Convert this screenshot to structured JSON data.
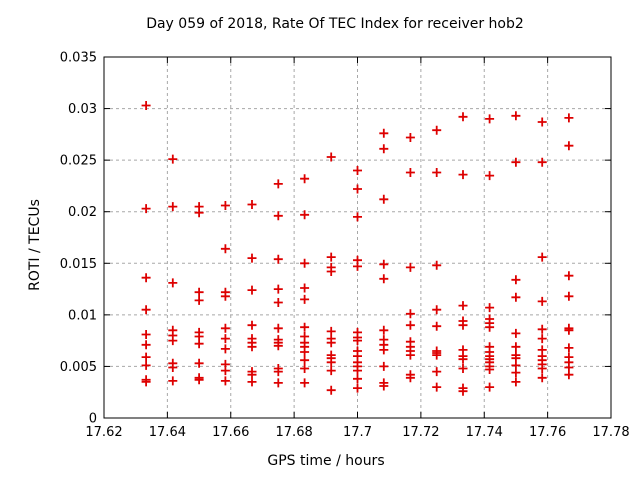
{
  "chart_data": {
    "type": "scatter",
    "title": "Day 059 of 2018, Rate Of TEC Index for receiver hob2",
    "xlabel": "GPS time / hours",
    "ylabel": "ROTI / TECUs",
    "xlim": [
      17.62,
      17.78
    ],
    "ylim": [
      0,
      0.035
    ],
    "xticks": [
      {
        "value": 17.62,
        "label": "17.62"
      },
      {
        "value": 17.64,
        "label": "17.64"
      },
      {
        "value": 17.66,
        "label": "17.66"
      },
      {
        "value": 17.68,
        "label": "17.68"
      },
      {
        "value": 17.7,
        "label": "17.7"
      },
      {
        "value": 17.72,
        "label": "17.72"
      },
      {
        "value": 17.74,
        "label": "17.74"
      },
      {
        "value": 17.76,
        "label": "17.76"
      },
      {
        "value": 17.78,
        "label": "17.78"
      }
    ],
    "yticks": [
      {
        "value": 0,
        "label": "0"
      },
      {
        "value": 0.005,
        "label": "0.005"
      },
      {
        "value": 0.01,
        "label": "0.01"
      },
      {
        "value": 0.015,
        "label": "0.015"
      },
      {
        "value": 0.02,
        "label": "0.02"
      },
      {
        "value": 0.025,
        "label": "0.025"
      },
      {
        "value": 0.03,
        "label": "0.03"
      },
      {
        "value": 0.035,
        "label": "0.035"
      }
    ],
    "grid": true,
    "legend": "none",
    "marker": "plus",
    "colors": {
      "marker": "#dd0000",
      "grid": "#a8a8a8",
      "axis": "#000000",
      "background": "#ffffff"
    },
    "series": [
      {
        "name": "ROTI",
        "points": [
          [
            17.6333,
            0.0303
          ],
          [
            17.6333,
            0.0203
          ],
          [
            17.6333,
            0.0136
          ],
          [
            17.6333,
            0.0105
          ],
          [
            17.6333,
            0.0081
          ],
          [
            17.6333,
            0.0071
          ],
          [
            17.6333,
            0.0059
          ],
          [
            17.6333,
            0.0051
          ],
          [
            17.6333,
            0.0037
          ],
          [
            17.6333,
            0.0035
          ],
          [
            17.6417,
            0.0251
          ],
          [
            17.6417,
            0.0205
          ],
          [
            17.6417,
            0.0131
          ],
          [
            17.6417,
            0.0085
          ],
          [
            17.6417,
            0.008
          ],
          [
            17.6417,
            0.0075
          ],
          [
            17.6417,
            0.0053
          ],
          [
            17.6417,
            0.0049
          ],
          [
            17.6417,
            0.0036
          ],
          [
            17.65,
            0.0205
          ],
          [
            17.65,
            0.0199
          ],
          [
            17.65,
            0.0122
          ],
          [
            17.65,
            0.0114
          ],
          [
            17.65,
            0.0083
          ],
          [
            17.65,
            0.0079
          ],
          [
            17.65,
            0.0072
          ],
          [
            17.65,
            0.0053
          ],
          [
            17.65,
            0.0039
          ],
          [
            17.65,
            0.0037
          ],
          [
            17.6583,
            0.0206
          ],
          [
            17.6583,
            0.0164
          ],
          [
            17.6583,
            0.0122
          ],
          [
            17.6583,
            0.0118
          ],
          [
            17.6583,
            0.0087
          ],
          [
            17.6583,
            0.0077
          ],
          [
            17.6583,
            0.0067
          ],
          [
            17.6583,
            0.0052
          ],
          [
            17.6583,
            0.0046
          ],
          [
            17.6583,
            0.0036
          ],
          [
            17.6667,
            0.0207
          ],
          [
            17.6667,
            0.0155
          ],
          [
            17.6667,
            0.0124
          ],
          [
            17.6667,
            0.009
          ],
          [
            17.6667,
            0.0077
          ],
          [
            17.6667,
            0.0073
          ],
          [
            17.6667,
            0.0069
          ],
          [
            17.6667,
            0.0045
          ],
          [
            17.6667,
            0.0042
          ],
          [
            17.6667,
            0.0035
          ],
          [
            17.675,
            0.0227
          ],
          [
            17.675,
            0.0196
          ],
          [
            17.675,
            0.0154
          ],
          [
            17.675,
            0.0125
          ],
          [
            17.675,
            0.0112
          ],
          [
            17.675,
            0.0087
          ],
          [
            17.675,
            0.0076
          ],
          [
            17.675,
            0.0073
          ],
          [
            17.675,
            0.007
          ],
          [
            17.675,
            0.0048
          ],
          [
            17.675,
            0.0045
          ],
          [
            17.675,
            0.0034
          ],
          [
            17.6833,
            0.0232
          ],
          [
            17.6833,
            0.0197
          ],
          [
            17.6833,
            0.015
          ],
          [
            17.6833,
            0.0126
          ],
          [
            17.6833,
            0.0115
          ],
          [
            17.6833,
            0.0088
          ],
          [
            17.6833,
            0.0079
          ],
          [
            17.6833,
            0.0073
          ],
          [
            17.6833,
            0.0069
          ],
          [
            17.6833,
            0.0064
          ],
          [
            17.6833,
            0.0056
          ],
          [
            17.6833,
            0.0048
          ],
          [
            17.6833,
            0.0034
          ],
          [
            17.6917,
            0.0253
          ],
          [
            17.6917,
            0.0156
          ],
          [
            17.6917,
            0.0146
          ],
          [
            17.6917,
            0.0142
          ],
          [
            17.6917,
            0.0084
          ],
          [
            17.6917,
            0.0077
          ],
          [
            17.6917,
            0.0073
          ],
          [
            17.6917,
            0.0061
          ],
          [
            17.6917,
            0.0058
          ],
          [
            17.6917,
            0.0054
          ],
          [
            17.6917,
            0.0046
          ],
          [
            17.6917,
            0.0027
          ],
          [
            17.7,
            0.024
          ],
          [
            17.7,
            0.0222
          ],
          [
            17.7,
            0.0195
          ],
          [
            17.7,
            0.0153
          ],
          [
            17.7,
            0.0147
          ],
          [
            17.7,
            0.0083
          ],
          [
            17.7,
            0.0078
          ],
          [
            17.7,
            0.0075
          ],
          [
            17.7,
            0.0065
          ],
          [
            17.7,
            0.006
          ],
          [
            17.7,
            0.0054
          ],
          [
            17.7,
            0.005
          ],
          [
            17.7,
            0.0046
          ],
          [
            17.7,
            0.0038
          ],
          [
            17.7,
            0.0029
          ],
          [
            17.7083,
            0.0276
          ],
          [
            17.7083,
            0.0261
          ],
          [
            17.7083,
            0.0212
          ],
          [
            17.7083,
            0.0149
          ],
          [
            17.7083,
            0.0135
          ],
          [
            17.7083,
            0.0085
          ],
          [
            17.7083,
            0.0076
          ],
          [
            17.7083,
            0.0071
          ],
          [
            17.7083,
            0.0066
          ],
          [
            17.7083,
            0.005
          ],
          [
            17.7083,
            0.0034
          ],
          [
            17.7083,
            0.0031
          ],
          [
            17.7167,
            0.0272
          ],
          [
            17.7167,
            0.0238
          ],
          [
            17.7167,
            0.0146
          ],
          [
            17.7167,
            0.0101
          ],
          [
            17.7167,
            0.009
          ],
          [
            17.7167,
            0.0074
          ],
          [
            17.7167,
            0.0069
          ],
          [
            17.7167,
            0.0065
          ],
          [
            17.7167,
            0.0061
          ],
          [
            17.7167,
            0.0042
          ],
          [
            17.7167,
            0.0039
          ],
          [
            17.725,
            0.0279
          ],
          [
            17.725,
            0.0238
          ],
          [
            17.725,
            0.0148
          ],
          [
            17.725,
            0.0105
          ],
          [
            17.725,
            0.0089
          ],
          [
            17.725,
            0.0065
          ],
          [
            17.725,
            0.0063
          ],
          [
            17.725,
            0.0061
          ],
          [
            17.725,
            0.0045
          ],
          [
            17.725,
            0.003
          ],
          [
            17.7333,
            0.0292
          ],
          [
            17.7333,
            0.0236
          ],
          [
            17.7333,
            0.0109
          ],
          [
            17.7333,
            0.0094
          ],
          [
            17.7333,
            0.009
          ],
          [
            17.7333,
            0.0066
          ],
          [
            17.7333,
            0.006
          ],
          [
            17.7333,
            0.0057
          ],
          [
            17.7333,
            0.0048
          ],
          [
            17.7333,
            0.0029
          ],
          [
            17.7333,
            0.0026
          ],
          [
            17.7417,
            0.029
          ],
          [
            17.7417,
            0.0235
          ],
          [
            17.7417,
            0.0107
          ],
          [
            17.7417,
            0.0096
          ],
          [
            17.7417,
            0.0092
          ],
          [
            17.7417,
            0.0088
          ],
          [
            17.7417,
            0.0069
          ],
          [
            17.7417,
            0.0064
          ],
          [
            17.7417,
            0.006
          ],
          [
            17.7417,
            0.0057
          ],
          [
            17.7417,
            0.0054
          ],
          [
            17.7417,
            0.005
          ],
          [
            17.7417,
            0.0047
          ],
          [
            17.7417,
            0.003
          ],
          [
            17.75,
            0.0293
          ],
          [
            17.75,
            0.0248
          ],
          [
            17.75,
            0.0134
          ],
          [
            17.75,
            0.0117
          ],
          [
            17.75,
            0.0082
          ],
          [
            17.75,
            0.0069
          ],
          [
            17.75,
            0.0061
          ],
          [
            17.75,
            0.0058
          ],
          [
            17.75,
            0.0051
          ],
          [
            17.75,
            0.0044
          ],
          [
            17.75,
            0.0035
          ],
          [
            17.7583,
            0.0287
          ],
          [
            17.7583,
            0.0248
          ],
          [
            17.7583,
            0.0156
          ],
          [
            17.7583,
            0.0113
          ],
          [
            17.7583,
            0.0086
          ],
          [
            17.7583,
            0.0077
          ],
          [
            17.7583,
            0.0066
          ],
          [
            17.7583,
            0.006
          ],
          [
            17.7583,
            0.0056
          ],
          [
            17.7583,
            0.0052
          ],
          [
            17.7583,
            0.0048
          ],
          [
            17.7583,
            0.0039
          ],
          [
            17.7667,
            0.0291
          ],
          [
            17.7667,
            0.0264
          ],
          [
            17.7667,
            0.0138
          ],
          [
            17.7667,
            0.0118
          ],
          [
            17.7667,
            0.0087
          ],
          [
            17.7667,
            0.0085
          ],
          [
            17.7667,
            0.0068
          ],
          [
            17.7667,
            0.0059
          ],
          [
            17.7667,
            0.0054
          ],
          [
            17.7667,
            0.0049
          ],
          [
            17.7667,
            0.0042
          ]
        ]
      }
    ]
  }
}
